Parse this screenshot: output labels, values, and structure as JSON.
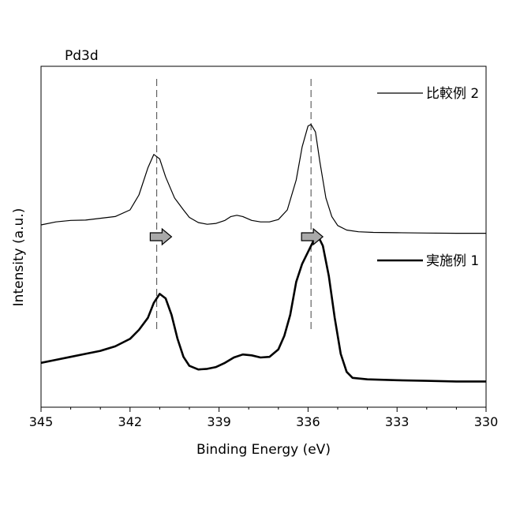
{
  "chart_data": {
    "type": "line",
    "title": "Pd3d",
    "xlabel": "Binding Energy (eV)",
    "ylabel": "Intensity (a.u.)",
    "xlim": [
      345,
      330
    ],
    "x_reversed": true,
    "ylim": [
      0,
      1
    ],
    "y_ticks_shown": false,
    "grid": false,
    "legend_placement": "right, beside each curve",
    "x_ticks": [
      {
        "value": 345,
        "label": "345"
      },
      {
        "value": 342,
        "label": "342"
      },
      {
        "value": 339,
        "label": "339"
      },
      {
        "value": 336,
        "label": "336"
      },
      {
        "value": 333,
        "label": "333"
      },
      {
        "value": 330,
        "label": "330"
      }
    ],
    "series": [
      {
        "name": "比較例 2",
        "style": "thin",
        "color": "#000000",
        "points": [
          [
            345.0,
            0.55
          ],
          [
            344.5,
            0.56
          ],
          [
            344.0,
            0.565
          ],
          [
            343.5,
            0.566
          ],
          [
            343.0,
            0.572
          ],
          [
            342.5,
            0.578
          ],
          [
            342.0,
            0.6
          ],
          [
            341.7,
            0.65
          ],
          [
            341.4,
            0.74
          ],
          [
            341.2,
            0.785
          ],
          [
            341.0,
            0.77
          ],
          [
            340.8,
            0.71
          ],
          [
            340.5,
            0.64
          ],
          [
            340.2,
            0.6
          ],
          [
            340.0,
            0.575
          ],
          [
            339.7,
            0.558
          ],
          [
            339.4,
            0.552
          ],
          [
            339.1,
            0.555
          ],
          [
            338.8,
            0.565
          ],
          [
            338.6,
            0.578
          ],
          [
            338.4,
            0.582
          ],
          [
            338.2,
            0.578
          ],
          [
            337.9,
            0.565
          ],
          [
            337.6,
            0.56
          ],
          [
            337.3,
            0.56
          ],
          [
            337.0,
            0.568
          ],
          [
            336.7,
            0.6
          ],
          [
            336.4,
            0.7
          ],
          [
            336.2,
            0.81
          ],
          [
            336.0,
            0.88
          ],
          [
            335.9,
            0.885
          ],
          [
            335.75,
            0.86
          ],
          [
            335.6,
            0.76
          ],
          [
            335.4,
            0.64
          ],
          [
            335.2,
            0.578
          ],
          [
            335.0,
            0.548
          ],
          [
            334.7,
            0.533
          ],
          [
            334.3,
            0.527
          ],
          [
            333.8,
            0.525
          ],
          [
            333.0,
            0.524
          ],
          [
            332.0,
            0.523
          ],
          [
            331.0,
            0.522
          ],
          [
            330.0,
            0.522
          ]
        ]
      },
      {
        "name": "実施例 1",
        "style": "thick",
        "color": "#000000",
        "points": [
          [
            345.0,
            0.09
          ],
          [
            344.5,
            0.1
          ],
          [
            344.0,
            0.11
          ],
          [
            343.5,
            0.12
          ],
          [
            343.0,
            0.13
          ],
          [
            342.5,
            0.145
          ],
          [
            342.0,
            0.17
          ],
          [
            341.7,
            0.2
          ],
          [
            341.4,
            0.24
          ],
          [
            341.2,
            0.29
          ],
          [
            341.0,
            0.32
          ],
          [
            340.8,
            0.305
          ],
          [
            340.6,
            0.25
          ],
          [
            340.4,
            0.17
          ],
          [
            340.2,
            0.11
          ],
          [
            340.0,
            0.08
          ],
          [
            339.7,
            0.068
          ],
          [
            339.4,
            0.07
          ],
          [
            339.1,
            0.076
          ],
          [
            338.8,
            0.09
          ],
          [
            338.5,
            0.108
          ],
          [
            338.2,
            0.118
          ],
          [
            337.9,
            0.115
          ],
          [
            337.6,
            0.108
          ],
          [
            337.3,
            0.11
          ],
          [
            337.0,
            0.135
          ],
          [
            336.8,
            0.18
          ],
          [
            336.6,
            0.25
          ],
          [
            336.4,
            0.36
          ],
          [
            336.2,
            0.42
          ],
          [
            336.0,
            0.46
          ],
          [
            335.8,
            0.5
          ],
          [
            335.65,
            0.51
          ],
          [
            335.5,
            0.48
          ],
          [
            335.3,
            0.38
          ],
          [
            335.1,
            0.24
          ],
          [
            334.9,
            0.12
          ],
          [
            334.7,
            0.06
          ],
          [
            334.5,
            0.04
          ],
          [
            334.0,
            0.035
          ],
          [
            333.0,
            0.032
          ],
          [
            332.0,
            0.03
          ],
          [
            331.0,
            0.028
          ],
          [
            330.0,
            0.028
          ]
        ]
      }
    ],
    "reference_lines": [
      {
        "x": 341.1,
        "style": "dashed",
        "spans": "both curves"
      },
      {
        "x": 335.9,
        "style": "dashed",
        "spans": "both curves"
      }
    ],
    "arrows": [
      {
        "x": 341.0,
        "direction": "right",
        "color": "#a9a9a9"
      },
      {
        "x": 335.9,
        "direction": "right",
        "color": "#a9a9a9"
      }
    ]
  }
}
